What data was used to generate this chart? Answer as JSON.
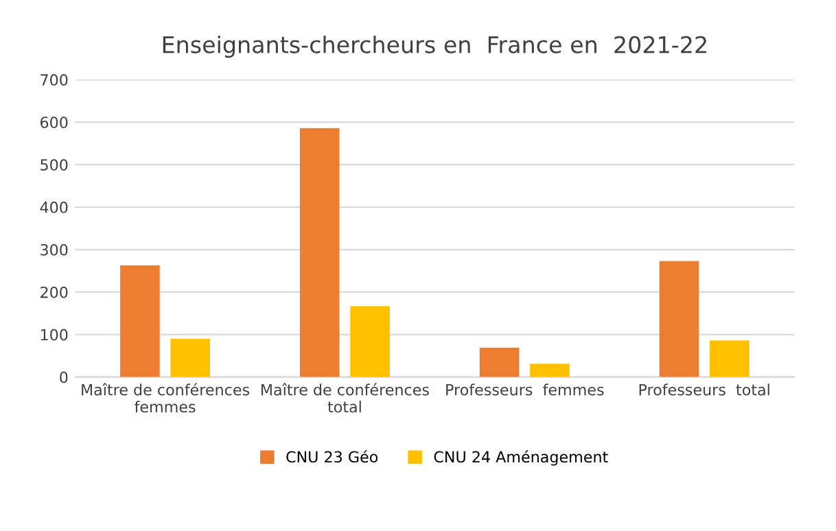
{
  "chart_data": {
    "type": "bar",
    "title": "Enseignants-chercheurs en  France en  2021-22",
    "categories": [
      "Maître de conférences\nfemmes",
      "Maître de conférences\ntotal",
      "Professeurs  femmes",
      "Professeurs  total"
    ],
    "series": [
      {
        "name": "CNU 23 Géo",
        "color": "#ed7d31",
        "values": [
          263,
          586,
          69,
          273
        ]
      },
      {
        "name": "CNU 24 Aménagement",
        "color": "#ffc000",
        "values": [
          90,
          167,
          31,
          86
        ]
      }
    ],
    "ylim": [
      0,
      700
    ],
    "yticks": [
      0,
      100,
      200,
      300,
      400,
      500,
      600,
      700
    ],
    "grid": "y",
    "legend": "bottom"
  }
}
